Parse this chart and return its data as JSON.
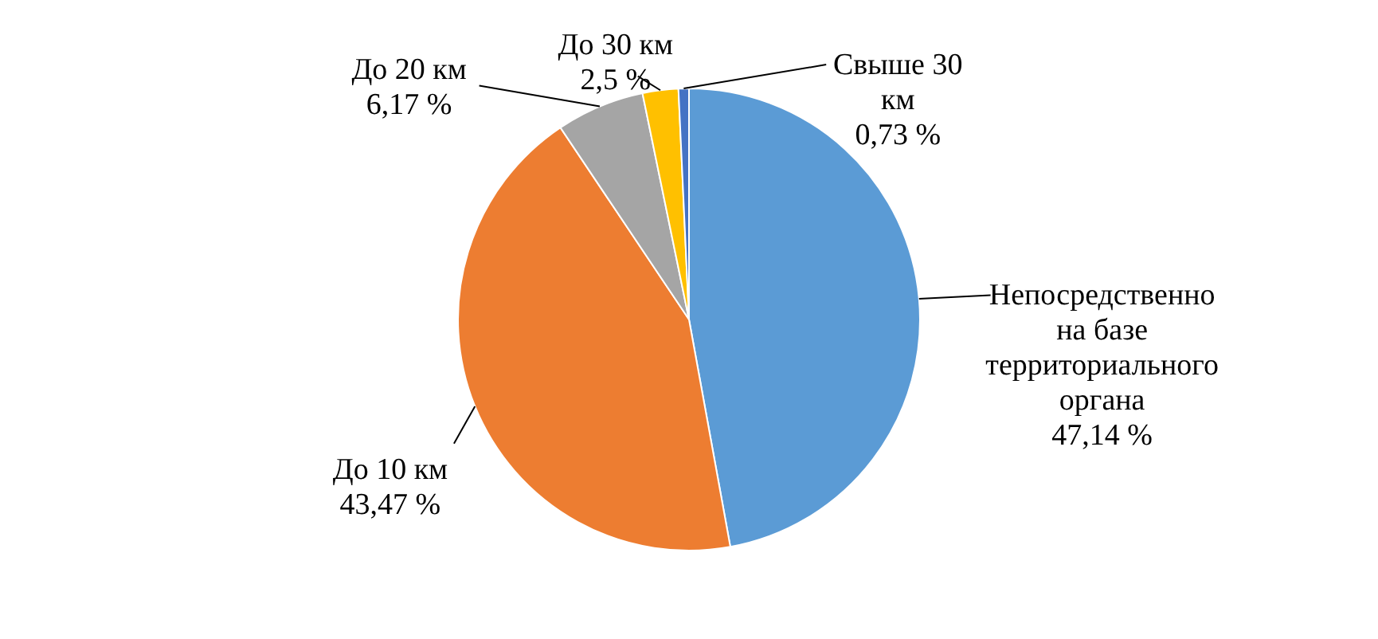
{
  "chart_data": {
    "type": "pie",
    "categories": [
      "Непосредственно на базе территориального органа",
      "До 10 км",
      "До 20 км",
      "До 30 км",
      "Свыше 30 км"
    ],
    "values": [
      47.14,
      43.47,
      6.17,
      2.5,
      0.73
    ],
    "colors": [
      "#5b9bd5",
      "#ed7d31",
      "#a5a5a5",
      "#ffc000",
      "#4472c4"
    ],
    "value_labels": [
      "47,14 %",
      "43,47 %",
      "6,17 %",
      "2,5 %",
      "0,73 %"
    ]
  }
}
